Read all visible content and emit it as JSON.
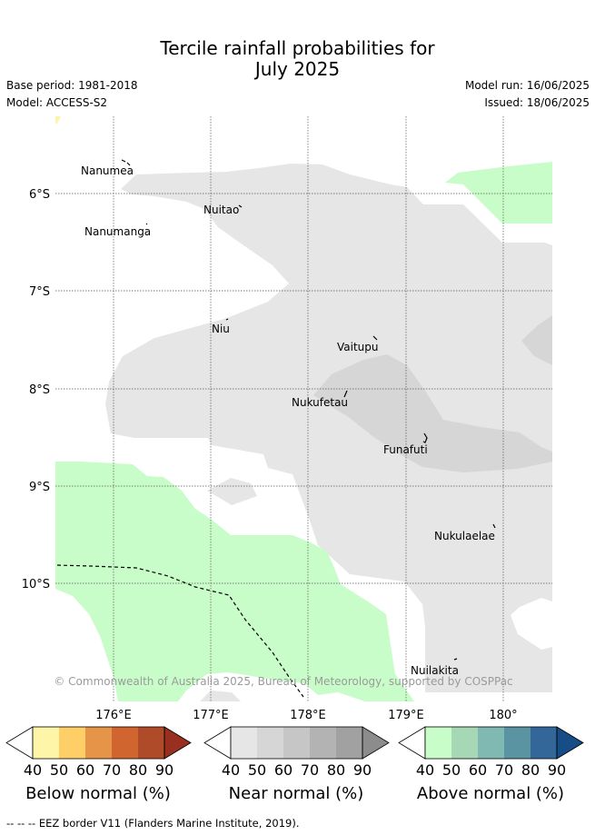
{
  "header": {
    "title_line1": "Tercile rainfall probabilities for",
    "title_line2": "July 2025",
    "base_period": "Base period: 1981-2018",
    "model": "Model: ACCESS-S2",
    "model_run": "Model run: 16/06/2025",
    "issued": "Issued: 18/06/2025"
  },
  "map": {
    "lat_labels": [
      "6°S",
      "7°S",
      "8°S",
      "9°S",
      "10°S"
    ],
    "lon_labels": [
      "176°E",
      "177°E",
      "178°E",
      "179°E",
      "180°"
    ],
    "places": [
      "Nanumea",
      "Nuitao",
      "Nanumanga",
      "Niu",
      "Vaitupu",
      "Nukufetau",
      "Funafuti",
      "Nukulaelae",
      "Nuilakita"
    ],
    "copyright": "© Commonwealth of Australia 2025, Bureau of Meteorology, supported by COSPPac",
    "colors": {
      "near_normal_40": "#e6e6e6",
      "near_normal_50": "#d6d6d6",
      "above_normal_40": "#c8fdc9",
      "below_normal_40": "#fef5a8"
    }
  },
  "colorbars": {
    "ticks": [
      "40",
      "50",
      "60",
      "70",
      "80",
      "90"
    ],
    "below": {
      "label": "Below normal (%)",
      "colors": [
        "#fef5a8",
        "#fecf66",
        "#e59448",
        "#d0652f",
        "#b04b2a",
        "#99301f"
      ]
    },
    "near": {
      "label": "Near normal (%)",
      "colors": [
        "#e6e6e6",
        "#d6d6d6",
        "#c6c6c6",
        "#b3b3b3",
        "#a1a1a1",
        "#8c8c8c"
      ]
    },
    "above": {
      "label": "Above normal (%)",
      "colors": [
        "#c8fdc9",
        "#a6d8b6",
        "#80b9b2",
        "#5a93a2",
        "#336699",
        "#174d86"
      ]
    }
  },
  "footer": {
    "eez_note": "--  --  -- EEZ border V11 (Flanders Marine Institute, 2019)."
  }
}
